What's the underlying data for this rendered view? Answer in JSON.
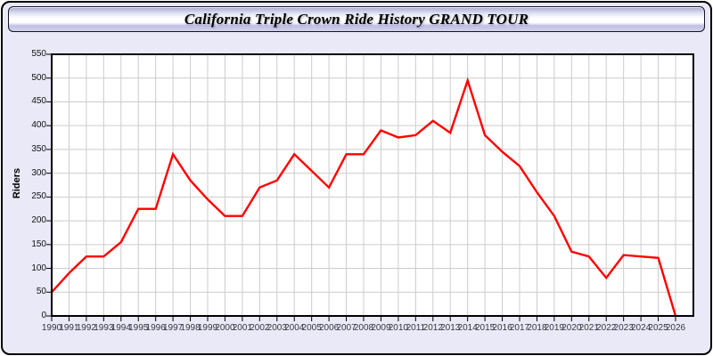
{
  "header": {
    "title": "California Triple Crown Ride History GRAND TOUR"
  },
  "chart_data": {
    "type": "line",
    "title": "California Triple Crown Ride History GRAND TOUR",
    "xlabel": "",
    "ylabel": "Riders",
    "x": [
      1990,
      1991,
      1992,
      1993,
      1994,
      1995,
      1996,
      1997,
      1998,
      1999,
      2000,
      2001,
      2002,
      2003,
      2004,
      2005,
      2006,
      2007,
      2008,
      2009,
      2010,
      2011,
      2012,
      2013,
      2014,
      2015,
      2016,
      2017,
      2018,
      2019,
      2020,
      2021,
      2022,
      2023,
      2024,
      2025,
      2026
    ],
    "series": [
      {
        "name": "Riders",
        "color": "#ff0000",
        "values": [
          50,
          90,
          125,
          125,
          155,
          225,
          225,
          340,
          285,
          245,
          210,
          210,
          270,
          285,
          340,
          305,
          270,
          340,
          340,
          390,
          375,
          380,
          410,
          385,
          495,
          380,
          345,
          315,
          260,
          210,
          135,
          125,
          80,
          128,
          125,
          122,
          0
        ]
      }
    ],
    "ylim": [
      0,
      550
    ],
    "yticks": [
      0,
      50,
      100,
      150,
      200,
      250,
      300,
      350,
      400,
      450,
      500,
      550
    ],
    "grid": true,
    "legend": "none"
  },
  "colors": {
    "line": "#ff0000",
    "card_bg": "#e9e9f7",
    "plot_bg": "#ffffff",
    "grid": "#cccccc",
    "frame": "#000000"
  }
}
